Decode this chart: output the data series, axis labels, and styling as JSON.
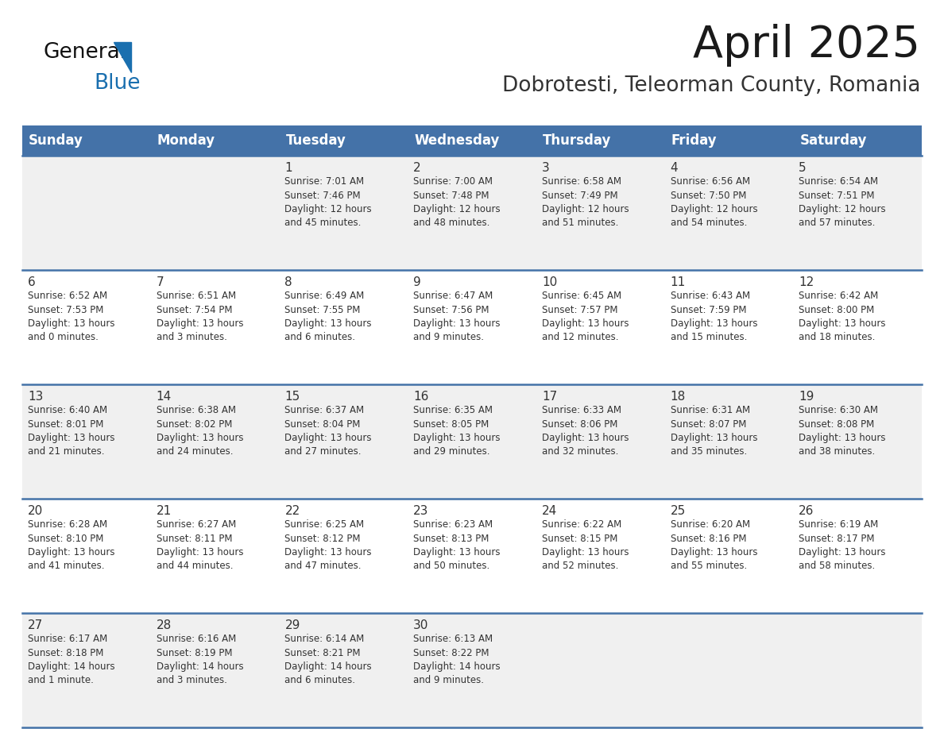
{
  "title": "April 2025",
  "subtitle": "Dobrotesti, Teleorman County, Romania",
  "header_bg": "#4472A8",
  "header_text": "#FFFFFF",
  "row_bg_odd": "#F0F0F0",
  "row_bg_even": "#FFFFFF",
  "row_separator": "#4472A8",
  "day_headers": [
    "Sunday",
    "Monday",
    "Tuesday",
    "Wednesday",
    "Thursday",
    "Friday",
    "Saturday"
  ],
  "title_color": "#1a1a1a",
  "subtitle_color": "#333333",
  "cell_text_color": "#333333",
  "day_num_color": "#333333",
  "logo_black": "#111111",
  "logo_blue": "#1a6faf",
  "triangle_color": "#1a6faf",
  "weeks": [
    [
      {
        "day": "",
        "info": ""
      },
      {
        "day": "",
        "info": ""
      },
      {
        "day": "1",
        "info": "Sunrise: 7:01 AM\nSunset: 7:46 PM\nDaylight: 12 hours\nand 45 minutes."
      },
      {
        "day": "2",
        "info": "Sunrise: 7:00 AM\nSunset: 7:48 PM\nDaylight: 12 hours\nand 48 minutes."
      },
      {
        "day": "3",
        "info": "Sunrise: 6:58 AM\nSunset: 7:49 PM\nDaylight: 12 hours\nand 51 minutes."
      },
      {
        "day": "4",
        "info": "Sunrise: 6:56 AM\nSunset: 7:50 PM\nDaylight: 12 hours\nand 54 minutes."
      },
      {
        "day": "5",
        "info": "Sunrise: 6:54 AM\nSunset: 7:51 PM\nDaylight: 12 hours\nand 57 minutes."
      }
    ],
    [
      {
        "day": "6",
        "info": "Sunrise: 6:52 AM\nSunset: 7:53 PM\nDaylight: 13 hours\nand 0 minutes."
      },
      {
        "day": "7",
        "info": "Sunrise: 6:51 AM\nSunset: 7:54 PM\nDaylight: 13 hours\nand 3 minutes."
      },
      {
        "day": "8",
        "info": "Sunrise: 6:49 AM\nSunset: 7:55 PM\nDaylight: 13 hours\nand 6 minutes."
      },
      {
        "day": "9",
        "info": "Sunrise: 6:47 AM\nSunset: 7:56 PM\nDaylight: 13 hours\nand 9 minutes."
      },
      {
        "day": "10",
        "info": "Sunrise: 6:45 AM\nSunset: 7:57 PM\nDaylight: 13 hours\nand 12 minutes."
      },
      {
        "day": "11",
        "info": "Sunrise: 6:43 AM\nSunset: 7:59 PM\nDaylight: 13 hours\nand 15 minutes."
      },
      {
        "day": "12",
        "info": "Sunrise: 6:42 AM\nSunset: 8:00 PM\nDaylight: 13 hours\nand 18 minutes."
      }
    ],
    [
      {
        "day": "13",
        "info": "Sunrise: 6:40 AM\nSunset: 8:01 PM\nDaylight: 13 hours\nand 21 minutes."
      },
      {
        "day": "14",
        "info": "Sunrise: 6:38 AM\nSunset: 8:02 PM\nDaylight: 13 hours\nand 24 minutes."
      },
      {
        "day": "15",
        "info": "Sunrise: 6:37 AM\nSunset: 8:04 PM\nDaylight: 13 hours\nand 27 minutes."
      },
      {
        "day": "16",
        "info": "Sunrise: 6:35 AM\nSunset: 8:05 PM\nDaylight: 13 hours\nand 29 minutes."
      },
      {
        "day": "17",
        "info": "Sunrise: 6:33 AM\nSunset: 8:06 PM\nDaylight: 13 hours\nand 32 minutes."
      },
      {
        "day": "18",
        "info": "Sunrise: 6:31 AM\nSunset: 8:07 PM\nDaylight: 13 hours\nand 35 minutes."
      },
      {
        "day": "19",
        "info": "Sunrise: 6:30 AM\nSunset: 8:08 PM\nDaylight: 13 hours\nand 38 minutes."
      }
    ],
    [
      {
        "day": "20",
        "info": "Sunrise: 6:28 AM\nSunset: 8:10 PM\nDaylight: 13 hours\nand 41 minutes."
      },
      {
        "day": "21",
        "info": "Sunrise: 6:27 AM\nSunset: 8:11 PM\nDaylight: 13 hours\nand 44 minutes."
      },
      {
        "day": "22",
        "info": "Sunrise: 6:25 AM\nSunset: 8:12 PM\nDaylight: 13 hours\nand 47 minutes."
      },
      {
        "day": "23",
        "info": "Sunrise: 6:23 AM\nSunset: 8:13 PM\nDaylight: 13 hours\nand 50 minutes."
      },
      {
        "day": "24",
        "info": "Sunrise: 6:22 AM\nSunset: 8:15 PM\nDaylight: 13 hours\nand 52 minutes."
      },
      {
        "day": "25",
        "info": "Sunrise: 6:20 AM\nSunset: 8:16 PM\nDaylight: 13 hours\nand 55 minutes."
      },
      {
        "day": "26",
        "info": "Sunrise: 6:19 AM\nSunset: 8:17 PM\nDaylight: 13 hours\nand 58 minutes."
      }
    ],
    [
      {
        "day": "27",
        "info": "Sunrise: 6:17 AM\nSunset: 8:18 PM\nDaylight: 14 hours\nand 1 minute."
      },
      {
        "day": "28",
        "info": "Sunrise: 6:16 AM\nSunset: 8:19 PM\nDaylight: 14 hours\nand 3 minutes."
      },
      {
        "day": "29",
        "info": "Sunrise: 6:14 AM\nSunset: 8:21 PM\nDaylight: 14 hours\nand 6 minutes."
      },
      {
        "day": "30",
        "info": "Sunrise: 6:13 AM\nSunset: 8:22 PM\nDaylight: 14 hours\nand 9 minutes."
      },
      {
        "day": "",
        "info": ""
      },
      {
        "day": "",
        "info": ""
      },
      {
        "day": "",
        "info": ""
      }
    ]
  ]
}
